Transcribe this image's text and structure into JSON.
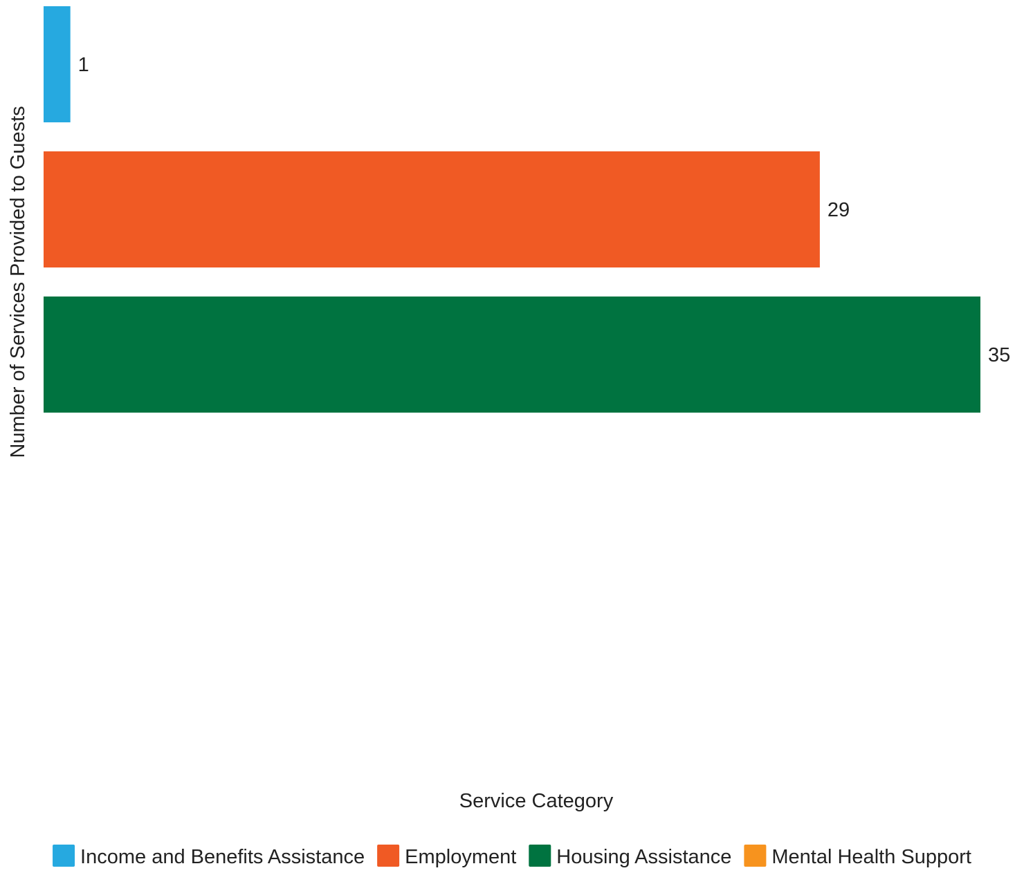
{
  "chart_data": {
    "type": "bar",
    "orientation": "horizontal",
    "ylabel": "Number of Services Provided to Guests",
    "xlabel": "Service Category",
    "xlim": [
      0,
      35
    ],
    "grid": false,
    "legend_position": "bottom",
    "series": [
      {
        "name": "Income and Benefits Assistance",
        "value": 1,
        "color": "#26a9e0"
      },
      {
        "name": "Employment",
        "value": 29,
        "color": "#f05a24"
      },
      {
        "name": "Housing Assistance",
        "value": 35,
        "color": "#007340"
      },
      {
        "name": "Mental Health Support",
        "value": null,
        "color": "#f7931e"
      }
    ]
  }
}
